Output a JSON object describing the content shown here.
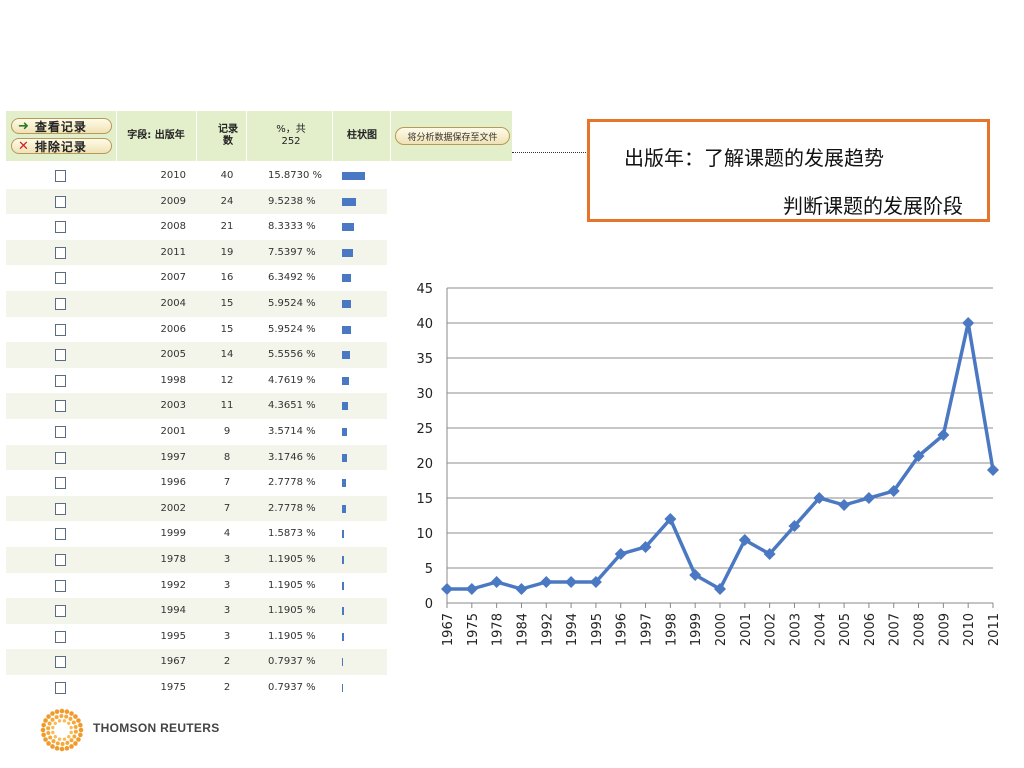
{
  "table": {
    "buttons": {
      "view": "查看记录",
      "exclude": "排除记录",
      "save": "将分析数据保存至文件"
    },
    "headers": {
      "field": "字段: 出版年",
      "count": "记录数",
      "percent": "%，共252",
      "bar": "柱状图"
    },
    "rows": [
      {
        "year": "2010",
        "count": "40",
        "percent": "15.8730 %"
      },
      {
        "year": "2009",
        "count": "24",
        "percent": "9.5238 %"
      },
      {
        "year": "2008",
        "count": "21",
        "percent": "8.3333 %"
      },
      {
        "year": "2011",
        "count": "19",
        "percent": "7.5397 %"
      },
      {
        "year": "2007",
        "count": "16",
        "percent": "6.3492 %"
      },
      {
        "year": "2004",
        "count": "15",
        "percent": "5.9524 %"
      },
      {
        "year": "2006",
        "count": "15",
        "percent": "5.9524 %"
      },
      {
        "year": "2005",
        "count": "14",
        "percent": "5.5556 %"
      },
      {
        "year": "1998",
        "count": "12",
        "percent": "4.7619 %"
      },
      {
        "year": "2003",
        "count": "11",
        "percent": "4.3651 %"
      },
      {
        "year": "2001",
        "count": "9",
        "percent": "3.5714 %"
      },
      {
        "year": "1997",
        "count": "8",
        "percent": "3.1746 %"
      },
      {
        "year": "1996",
        "count": "7",
        "percent": "2.7778 %"
      },
      {
        "year": "2002",
        "count": "7",
        "percent": "2.7778 %"
      },
      {
        "year": "1999",
        "count": "4",
        "percent": "1.5873 %"
      },
      {
        "year": "1978",
        "count": "3",
        "percent": "1.1905 %"
      },
      {
        "year": "1992",
        "count": "3",
        "percent": "1.1905 %"
      },
      {
        "year": "1994",
        "count": "3",
        "percent": "1.1905 %"
      },
      {
        "year": "1995",
        "count": "3",
        "percent": "1.1905 %"
      },
      {
        "year": "1967",
        "count": "2",
        "percent": "0.7937 %"
      },
      {
        "year": "1975",
        "count": "2",
        "percent": "0.7937 %"
      }
    ]
  },
  "note": {
    "line1": "出版年：了解课题的发展趋势",
    "line2": "判断课题的发展阶段"
  },
  "logo": {
    "text": "THOMSON REUTERS"
  },
  "colors": {
    "series": "#4a78c2",
    "note_border": "#e8742b",
    "header_bg": "#e3eecb"
  },
  "chart_data": {
    "type": "line",
    "categories": [
      "1967",
      "1975",
      "1978",
      "1984",
      "1992",
      "1994",
      "1995",
      "1996",
      "1997",
      "1998",
      "1999",
      "2000",
      "2001",
      "2002",
      "2003",
      "2004",
      "2005",
      "2006",
      "2007",
      "2008",
      "2009",
      "2010",
      "2011"
    ],
    "values": [
      2,
      2,
      3,
      2,
      3,
      3,
      3,
      7,
      8,
      12,
      4,
      2,
      9,
      7,
      11,
      15,
      14,
      15,
      16,
      21,
      24,
      40,
      19
    ],
    "ylim": [
      0,
      45
    ],
    "yticks": [
      0,
      5,
      10,
      15,
      20,
      25,
      30,
      35,
      40,
      45
    ],
    "grid": true,
    "marker": "diamond"
  }
}
